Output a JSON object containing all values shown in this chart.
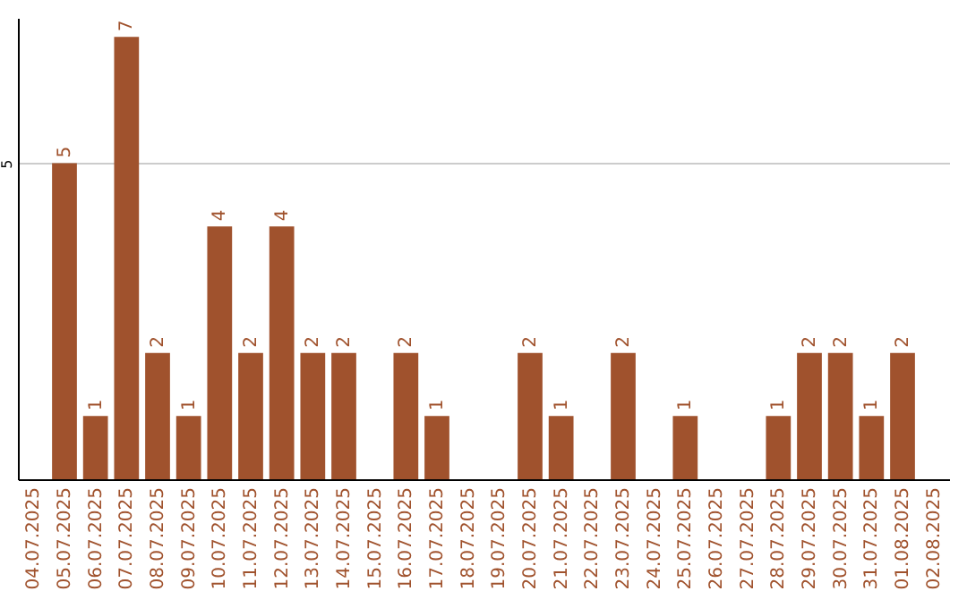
{
  "chart_data": {
    "type": "bar",
    "categories": [
      "04.07.2025",
      "05.07.2025",
      "06.07.2025",
      "07.07.2025",
      "08.07.2025",
      "09.07.2025",
      "10.07.2025",
      "11.07.2025",
      "12.07.2025",
      "13.07.2025",
      "14.07.2025",
      "15.07.2025",
      "16.07.2025",
      "17.07.2025",
      "18.07.2025",
      "19.07.2025",
      "20.07.2025",
      "21.07.2025",
      "22.07.2025",
      "23.07.2025",
      "24.07.2025",
      "25.07.2025",
      "26.07.2025",
      "27.07.2025",
      "28.07.2025",
      "29.07.2025",
      "30.07.2025",
      "31.07.2025",
      "01.08.2025",
      "02.08.2025"
    ],
    "values": [
      null,
      5,
      1,
      7,
      2,
      1,
      4,
      2,
      4,
      2,
      2,
      null,
      2,
      1,
      null,
      null,
      2,
      1,
      null,
      2,
      null,
      1,
      null,
      null,
      1,
      2,
      2,
      1,
      2,
      null
    ],
    "color": "#a0522d",
    "ylim": [
      0,
      7.3
    ],
    "yticks": [
      5
    ],
    "grid": "y",
    "data_labels": true
  }
}
